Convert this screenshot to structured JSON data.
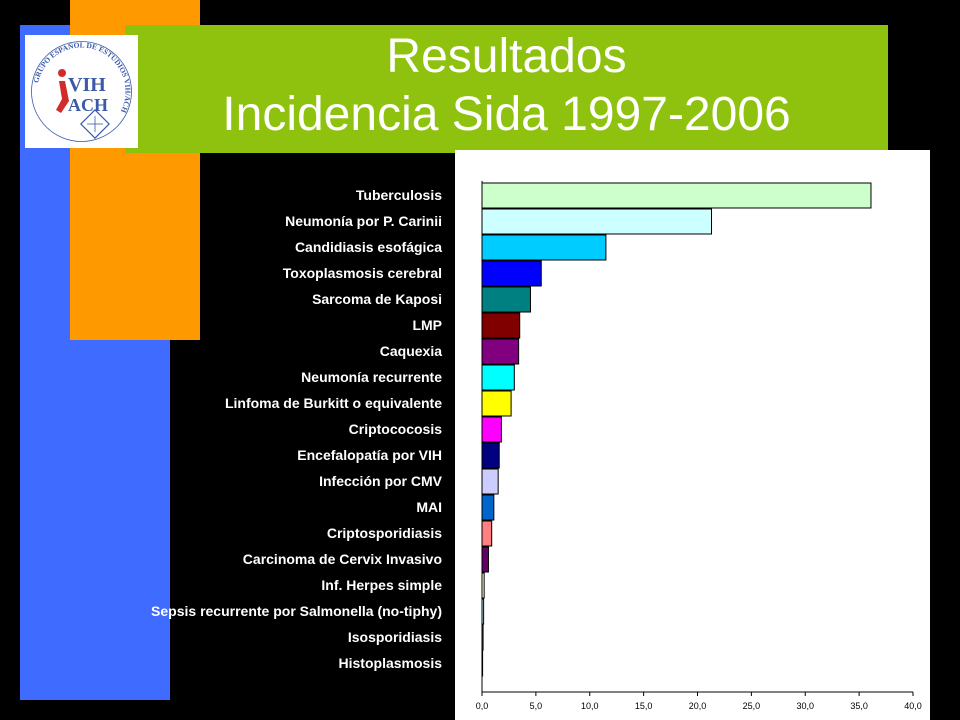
{
  "title": {
    "line1": "Resultados",
    "line2": "Incidencia Sida 1997-2006"
  },
  "logo": {
    "ring_text": "GRUPO ESPAÑOL DE ESTUDIOS VIH/ACH",
    "mark_top": "VIH",
    "mark_bottom": "ACH"
  },
  "colors": {
    "background": "#000000",
    "blue_stripe": "#3f6bff",
    "orange_stripe": "#ff9900",
    "title_band": "#8ec20f",
    "logo_red": "#d22b2b",
    "logo_blue": "#3a5aa8"
  },
  "chart_data": {
    "type": "bar",
    "orientation": "horizontal",
    "categories": [
      "Tuberculosis",
      "Neumonía por P. Carinii",
      "Candidiasis esofágica",
      "Toxoplasmosis cerebral",
      "Sarcoma de Kaposi",
      "LMP",
      "Caquexia",
      "Neumonía recurrente",
      "Linfoma de Burkitt o equivalente",
      "Criptococosis",
      "Encefalopatía por VIH",
      "Infección por CMV",
      "MAI",
      "Criptosporidiasis",
      "Carcinoma de Cervix Invasivo",
      "Inf. Herpes simple",
      "Sepsis recurrente por Salmonella (no-tiphy)",
      "Isosporidiasis",
      "Histoplasmosis"
    ],
    "values": [
      36.1,
      21.3,
      11.5,
      5.5,
      4.5,
      3.5,
      3.4,
      3.0,
      2.7,
      1.8,
      1.6,
      1.5,
      1.1,
      0.9,
      0.6,
      0.2,
      0.15,
      0.1,
      0.05
    ],
    "bar_colors": [
      "#ccffcc",
      "#ccffff",
      "#00ccff",
      "#0000ff",
      "#008080",
      "#800000",
      "#800080",
      "#00ffff",
      "#ffff00",
      "#ff00ff",
      "#000080",
      "#ccccff",
      "#0066cc",
      "#ff8080",
      "#660066",
      "#ffffcc",
      "#ccffff",
      "#99ccff",
      "#cc99ff"
    ],
    "xlim": [
      0,
      40
    ],
    "xticks": [
      "0,0",
      "5,0",
      "10,0",
      "15,0",
      "20,0",
      "25,0",
      "30,0",
      "35,0",
      "40,0"
    ],
    "title": "",
    "xlabel": "",
    "ylabel": "",
    "grid": false,
    "legend": "none"
  }
}
